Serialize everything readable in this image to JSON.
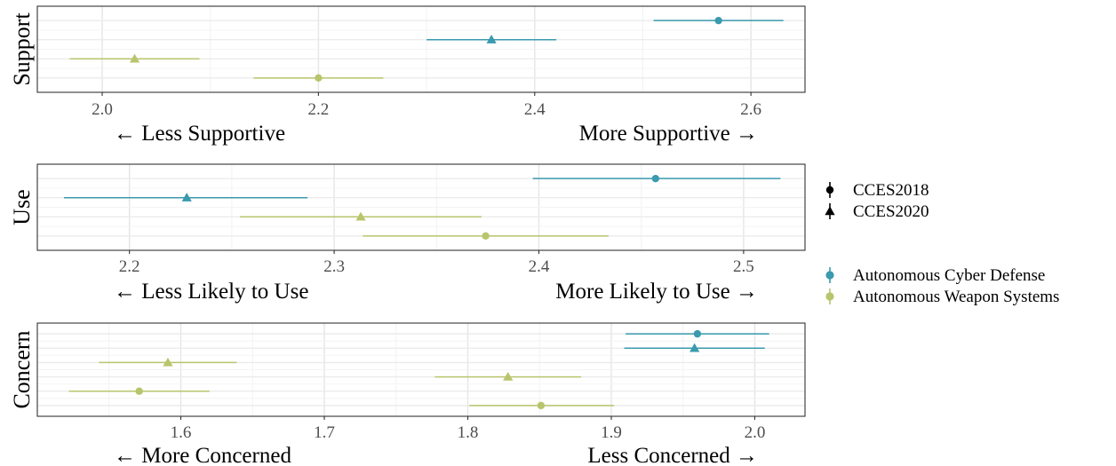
{
  "chart_data": {
    "type": "scatter",
    "legend": {
      "placement": "right",
      "shape_entries": [
        {
          "name": "CCES2018",
          "shape": "circle"
        },
        {
          "name": "CCES2020",
          "shape": "triangle"
        }
      ],
      "color_entries": [
        {
          "name": "Autonomous Cyber Defense",
          "color": "#3a9aae"
        },
        {
          "name": "Autonomous Weapon Systems",
          "color": "#b9c56c"
        }
      ]
    },
    "panels": [
      {
        "facet_label": "Support",
        "left_direction": "← Less Supportive",
        "right_direction": "More Supportive →",
        "xlim": [
          1.94,
          2.65
        ],
        "xticks": [
          2.0,
          2.2,
          2.4,
          2.6
        ],
        "tick_labels": [
          "2.0",
          "2.2",
          "2.4",
          "2.6"
        ],
        "rows": [
          {
            "system": "Autonomous Cyber Defense",
            "survey": "CCES2018",
            "estimate": 2.57,
            "low": 2.51,
            "high": 2.63
          },
          {
            "system": "Autonomous Cyber Defense",
            "survey": "CCES2020",
            "estimate": 2.36,
            "low": 2.3,
            "high": 2.42
          },
          {
            "system": "Autonomous Weapon Systems",
            "survey": "CCES2020",
            "estimate": 2.03,
            "low": 1.97,
            "high": 2.09
          },
          {
            "system": "Autonomous Weapon Systems",
            "survey": "CCES2018",
            "estimate": 2.2,
            "low": 2.14,
            "high": 2.26
          }
        ]
      },
      {
        "facet_label": "Use",
        "left_direction": "← Less Likely to Use",
        "right_direction": "More Likely to Use →",
        "xlim": [
          2.155,
          2.53
        ],
        "xticks": [
          2.2,
          2.3,
          2.4,
          2.5
        ],
        "tick_labels": [
          "2.2",
          "2.3",
          "2.4",
          "2.5"
        ],
        "rows": [
          {
            "system": "Autonomous Cyber Defense",
            "survey": "CCES2018",
            "estimate": 2.457,
            "low": 2.397,
            "high": 2.518
          },
          {
            "system": "Autonomous Cyber Defense",
            "survey": "CCES2020",
            "estimate": 2.228,
            "low": 2.168,
            "high": 2.287
          },
          {
            "system": "Autonomous Weapon Systems",
            "survey": "CCES2020",
            "estimate": 2.313,
            "low": 2.254,
            "high": 2.372
          },
          {
            "system": "Autonomous Weapon Systems",
            "survey": "CCES2018",
            "estimate": 2.374,
            "low": 2.314,
            "high": 2.434
          }
        ]
      },
      {
        "facet_label": "Concern",
        "left_direction": "← More Concerned",
        "right_direction": "Less Concerned →",
        "xlim": [
          1.5,
          2.035
        ],
        "xticks": [
          1.6,
          1.7,
          1.8,
          1.9,
          2.0
        ],
        "tick_labels": [
          "1.6",
          "1.7",
          "1.8",
          "1.9",
          "2.0"
        ],
        "rows": [
          {
            "system": "Autonomous Cyber Defense",
            "survey": "CCES2018",
            "estimate": 1.96,
            "low": 1.91,
            "high": 2.01
          },
          {
            "system": "Autonomous Cyber Defense",
            "survey": "CCES2020",
            "estimate": 1.958,
            "low": 1.909,
            "high": 2.007
          },
          {
            "system": "Autonomous Weapon Systems",
            "survey": "CCES2020",
            "estimate": 1.591,
            "low": 1.543,
            "high": 1.639
          },
          {
            "system": "Autonomous Weapon Systems",
            "survey": "CCES2020",
            "estimate": 1.828,
            "low": 1.777,
            "high": 1.879
          },
          {
            "system": "Autonomous Weapon Systems",
            "survey": "CCES2018",
            "estimate": 1.571,
            "low": 1.522,
            "high": 1.62
          },
          {
            "system": "Autonomous Weapon Systems",
            "survey": "CCES2018",
            "estimate": 1.851,
            "low": 1.801,
            "high": 1.902
          }
        ]
      }
    ]
  }
}
